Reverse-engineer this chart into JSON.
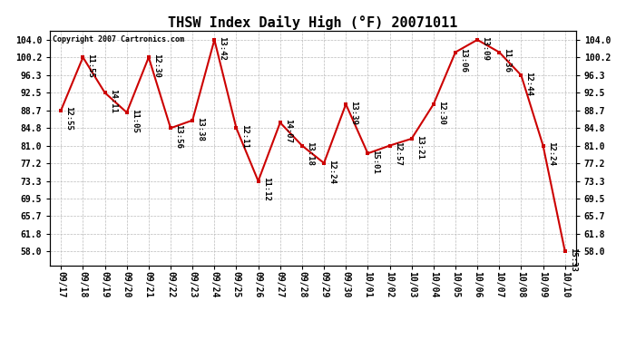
{
  "title": "THSW Index Daily High (°F) 20071011",
  "copyright": "Copyright 2007 Cartronics.com",
  "dates": [
    "09/17",
    "09/18",
    "09/19",
    "09/20",
    "09/21",
    "09/22",
    "09/23",
    "09/24",
    "09/25",
    "09/26",
    "09/27",
    "09/28",
    "09/29",
    "09/30",
    "10/01",
    "10/02",
    "10/03",
    "10/04",
    "10/05",
    "10/06",
    "10/07",
    "10/08",
    "10/09",
    "10/10"
  ],
  "values": [
    88.7,
    100.2,
    92.5,
    88.2,
    100.2,
    84.8,
    86.5,
    104.0,
    84.8,
    73.3,
    86.0,
    81.0,
    77.2,
    90.0,
    79.3,
    81.0,
    82.5,
    90.0,
    101.3,
    104.0,
    101.3,
    96.3,
    81.0,
    58.0
  ],
  "labels": [
    "12:55",
    "11:55",
    "14:11",
    "11:05",
    "12:30",
    "13:56",
    "13:38",
    "13:42",
    "12:11",
    "11:12",
    "14:07",
    "13:18",
    "12:24",
    "13:39",
    "15:01",
    "12:57",
    "13:21",
    "12:30",
    "13:06",
    "13:09",
    "11:36",
    "12:44",
    "12:24",
    "15:33"
  ],
  "yticks": [
    58.0,
    61.8,
    65.7,
    69.5,
    73.3,
    77.2,
    81.0,
    84.8,
    88.7,
    92.5,
    96.3,
    100.2,
    104.0
  ],
  "ylim": [
    55.0,
    106.0
  ],
  "line_color": "#cc0000",
  "marker_color": "#cc0000",
  "bg_color": "#ffffff",
  "grid_color": "#bbbbbb",
  "title_fontsize": 11,
  "label_fontsize": 6.5,
  "tick_fontsize": 7,
  "copyright_fontsize": 6
}
